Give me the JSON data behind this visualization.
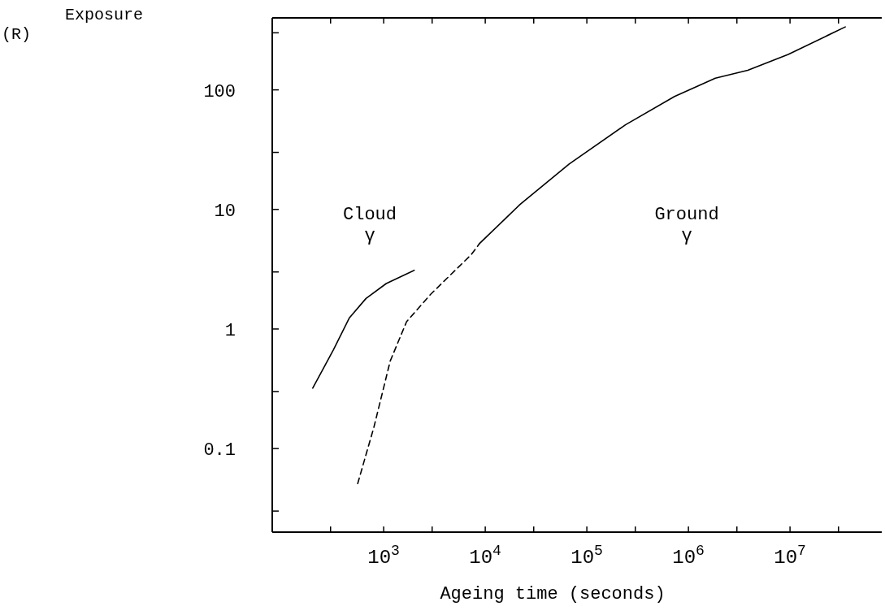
{
  "chart_data": {
    "type": "line",
    "xlabel": "Ageing time (seconds)",
    "ylabel": "Exposure (R)",
    "log": "xy",
    "grid": false,
    "xlim": [
      80,
      80000000
    ],
    "ylim": [
      0.02,
      400
    ],
    "xticks": [
      {
        "value": 300,
        "label": null
      },
      {
        "value": 1000,
        "label": "10$^{3}$"
      },
      {
        "value": 3000,
        "label": null
      },
      {
        "value": 10000,
        "label": "10$^{4}$"
      },
      {
        "value": 30000,
        "label": null
      },
      {
        "value": 100000,
        "label": "10$^{5}$"
      },
      {
        "value": 300000,
        "label": null
      },
      {
        "value": 1000000,
        "label": "10$^{6}$"
      },
      {
        "value": 3000000,
        "label": null
      },
      {
        "value": 10000000,
        "label": "10$^{7}$"
      },
      {
        "value": 30000000,
        "label": null
      }
    ],
    "yticks": [
      {
        "value": 0.03,
        "label": null
      },
      {
        "value": 0.1,
        "label": "0.1"
      },
      {
        "value": 0.3,
        "label": null
      },
      {
        "value": 1,
        "label": "1"
      },
      {
        "value": 3,
        "label": null
      },
      {
        "value": 10,
        "label": "10"
      },
      {
        "value": 30,
        "label": null
      },
      {
        "value": 100,
        "label": "100"
      },
      {
        "value": 300,
        "label": null
      }
    ],
    "series": [
      {
        "color": "#000000",
        "line_style": "solid",
        "x": [
          200,
          320,
          460,
          670,
          1060,
          2000
        ],
        "values": [
          0.32,
          0.67,
          1.24,
          1.8,
          2.4,
          3.1
        ]
      },
      {
        "color": "#000000",
        "line_style": "dashed",
        "x": [
          555,
          800,
          1160,
          1680,
          2900,
          7300,
          8800
        ],
        "values": [
          0.051,
          0.15,
          0.54,
          1.15,
          1.95,
          4.2,
          5.2
        ]
      },
      {
        "color": "#000000",
        "line_style": "solid",
        "x": [
          8800,
          22000,
          67000,
          240000,
          730000,
          1840000,
          3840000,
          9600000,
          35000000
        ],
        "values": [
          5.2,
          11,
          24,
          51,
          88,
          125,
          146,
          198,
          336
        ]
      }
    ],
    "annotations": [
      "Cloud\nγ",
      "Ground\nγ"
    ]
  }
}
